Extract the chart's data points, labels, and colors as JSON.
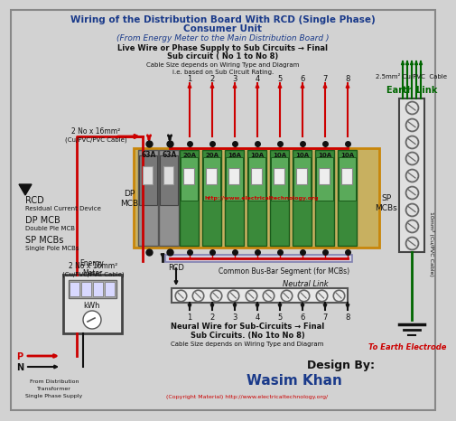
{
  "title_line1": "Wiring of the Distribution Board With RCD (Single Phase)",
  "title_line2": "Consumer Unit",
  "title_line3": "(From Energy Meter to the Main Distribution Board )",
  "subtitle1": "Live Wire or Phase Supply to Sub Circuits → Final",
  "subtitle2": "Sub circuit ( No 1 to No 8)",
  "subtitle3": "Cable Size depends on Wiring Type and Diagram",
  "subtitle4": "i.e. based on Sub Circuit Rating.",
  "bg_color": "#d2d2d2",
  "panel_border": "#c8860a",
  "mcb_green": "#3a8a3a",
  "mcb_green_dark": "#1a5a1a",
  "mcb_green_light": "#5aaa5a",
  "dp_gray": "#888888",
  "dp_gray_dark": "#555555",
  "wire_red": "#cc0000",
  "wire_black": "#111111",
  "wire_green": "#006600",
  "text_blue": "#1a3a8a",
  "text_dark": "#111111",
  "text_red": "#cc0000",
  "circuit_numbers": [
    "1",
    "2",
    "3",
    "4",
    "5",
    "6",
    "7",
    "8"
  ],
  "mcb_ratings": [
    "20A",
    "20A",
    "16A",
    "10A",
    "10A",
    "10A",
    "10A",
    "10A"
  ],
  "dp_ratings": [
    "63A",
    "63A"
  ],
  "design_by": "Design By:",
  "designer": "Wasim Khan",
  "copyright": "(Copyright Material) http://www.electricaltechnology.org/",
  "website": "http://www.electricaltechnology.org",
  "earth_link": "Earth Link",
  "neutral_link": "Neutral Link",
  "to_earth": "To Earth Electrode",
  "rcd_label": "RCD",
  "rcd_desc": "Residual Current Device",
  "dp_mcb_label": "DP MCB",
  "dp_mcb_desc": "Double Ple MCB",
  "sp_mcbs_label": "SP MCBs",
  "sp_mcbs_desc": "Single Pole MCBs",
  "dp_mcb_side": "DP\nMCB",
  "sp_mcbs_side": "SP\nMCBs",
  "cable_top_left1": "2 No x 16mm²",
  "cable_top_left2": "(Cu/PVC/PVC Cable)",
  "cable_bot_left1": "2 No x 16mm²",
  "cable_bot_left2": "(Cu/PVC/PVC Cable)",
  "cable_right_top": "2.5mm² Cu/PVC  Cable",
  "cable_right_bot": "10mm² (Cu/PVC Cable)",
  "neutral_desc1": "Neural Wire for Sub-Circuits → Final",
  "neutral_desc2": "Sub Circuits. (No 1to No 8)",
  "neutral_desc3": "Cable Size depends on Wiring Type and Diagram",
  "common_busbar": "Common Bus-Bar Segment (for MCBs)",
  "energy_meter_label": "Energy\nMeter",
  "kwh": "kWh",
  "from_dist1": "From Distribution",
  "from_dist2": "Transformer",
  "from_dist3": "Single Phase Supply",
  "p_label": "P",
  "n_label": "N"
}
